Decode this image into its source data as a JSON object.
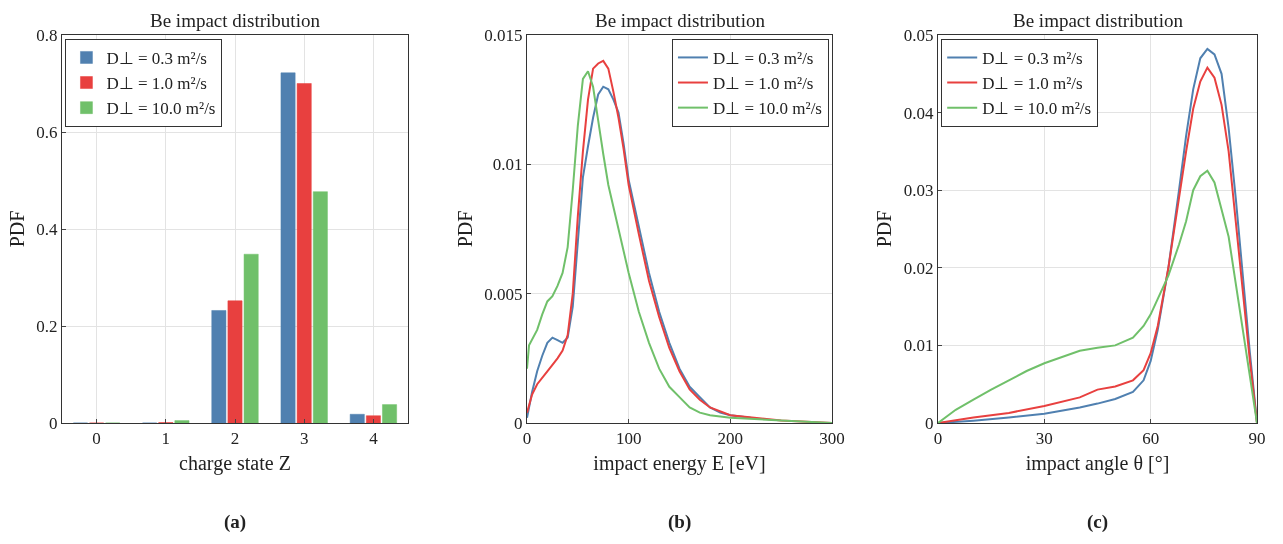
{
  "chart_data": [
    {
      "type": "bar",
      "title": "Be impact distribution",
      "xlabel": "charge state Z",
      "ylabel": "PDF",
      "categories": [
        "0",
        "1",
        "2",
        "3",
        "4"
      ],
      "ylim": [
        0,
        0.8
      ],
      "yticks": [
        0,
        0.2,
        0.4,
        0.6,
        0.8
      ],
      "grid": true,
      "legend": "top left",
      "annotations": [
        "(a)"
      ],
      "series": [
        {
          "name": "D⊥ = 0.3 m²/s",
          "color": "#5080b0",
          "values": [
            0,
            0,
            0.232,
            0.722,
            0.018
          ]
        },
        {
          "name": "D⊥ = 1.0 m²/s",
          "color": "#e8403f",
          "values": [
            0,
            0.001,
            0.252,
            0.7,
            0.015
          ]
        },
        {
          "name": "D⊥ = 10.0 m²/s",
          "color": "#70c06a",
          "values": [
            0,
            0.005,
            0.348,
            0.477,
            0.038
          ]
        }
      ]
    },
    {
      "type": "line",
      "title": "Be impact distribution",
      "xlabel": "impact energy E [eV]",
      "ylabel": "PDF",
      "xlim": [
        0,
        300
      ],
      "xticks": [
        0,
        100,
        200,
        300
      ],
      "ylim": [
        0,
        0.015
      ],
      "yticks": [
        0,
        0.005,
        0.01,
        0.015
      ],
      "grid": true,
      "legend": "top right",
      "annotations": [
        "(b)"
      ],
      "series": [
        {
          "name": "D⊥ = 0.3 m²/s",
          "color": "#5080b0",
          "x": [
            0,
            5,
            10,
            15,
            20,
            25,
            30,
            35,
            40,
            45,
            50,
            55,
            60,
            65,
            70,
            75,
            80,
            85,
            90,
            95,
            100,
            110,
            120,
            130,
            140,
            150,
            160,
            170,
            180,
            190,
            200,
            220
          ],
          "values": [
            0.0002,
            0.0012,
            0.002,
            0.0026,
            0.0031,
            0.0033,
            0.0032,
            0.0031,
            0.0033,
            0.0045,
            0.007,
            0.0095,
            0.0107,
            0.0118,
            0.0127,
            0.013,
            0.0129,
            0.0125,
            0.012,
            0.0108,
            0.0094,
            0.0076,
            0.0058,
            0.0043,
            0.0031,
            0.0021,
            0.0014,
            0.001,
            0.0006,
            0.0004,
            0.0003,
            0.0002
          ]
        },
        {
          "name": "D⊥ = 1.0 m²/s",
          "color": "#e8403f",
          "x": [
            0,
            5,
            10,
            20,
            30,
            35,
            40,
            45,
            50,
            55,
            60,
            65,
            70,
            75,
            80,
            85,
            90,
            95,
            100,
            110,
            120,
            130,
            140,
            150,
            160,
            170,
            180,
            200,
            250,
            300
          ],
          "values": [
            0.0004,
            0.0011,
            0.0015,
            0.002,
            0.0025,
            0.0028,
            0.0034,
            0.005,
            0.008,
            0.0105,
            0.0125,
            0.0137,
            0.0139,
            0.014,
            0.0137,
            0.0128,
            0.0118,
            0.0106,
            0.0092,
            0.0073,
            0.0055,
            0.0041,
            0.0029,
            0.002,
            0.0013,
            0.0009,
            0.0006,
            0.0003,
            0.0001,
            0
          ]
        },
        {
          "name": "D⊥ = 10.0 m²/s",
          "color": "#70c06a",
          "x": [
            0,
            2,
            10,
            15,
            20,
            25,
            30,
            35,
            40,
            45,
            50,
            55,
            60,
            65,
            70,
            75,
            80,
            90,
            100,
            110,
            120,
            130,
            140,
            150,
            160,
            170,
            180,
            200,
            250,
            300
          ],
          "values": [
            0.0021,
            0.003,
            0.0036,
            0.0042,
            0.0047,
            0.0049,
            0.0053,
            0.0058,
            0.0068,
            0.009,
            0.0115,
            0.0133,
            0.0136,
            0.013,
            0.0117,
            0.0104,
            0.0092,
            0.0075,
            0.0058,
            0.0043,
            0.0031,
            0.0021,
            0.0014,
            0.001,
            0.0006,
            0.0004,
            0.0003,
            0.0002,
            0.0001,
            0
          ]
        }
      ]
    },
    {
      "type": "line",
      "title": "Be impact distribution",
      "xlabel": "impact angle θ [°]",
      "ylabel": "PDF",
      "xlim": [
        0,
        90
      ],
      "xticks": [
        0,
        30,
        60,
        90
      ],
      "ylim": [
        0,
        0.05
      ],
      "yticks": [
        0,
        0.01,
        0.02,
        0.03,
        0.04,
        0.05
      ],
      "grid": true,
      "legend": "top left",
      "annotations": [
        "(c)"
      ],
      "series": [
        {
          "name": "D⊥ = 0.3 m²/s",
          "color": "#5080b0",
          "x": [
            0,
            10,
            20,
            30,
            40,
            45,
            50,
            55,
            58,
            60,
            62,
            65,
            68,
            70,
            72,
            74,
            76,
            78,
            80,
            82,
            84,
            86,
            88,
            90
          ],
          "values": [
            0,
            0.0003,
            0.0007,
            0.0012,
            0.002,
            0.0025,
            0.0031,
            0.004,
            0.0055,
            0.008,
            0.012,
            0.02,
            0.03,
            0.037,
            0.043,
            0.047,
            0.0482,
            0.0475,
            0.045,
            0.038,
            0.029,
            0.019,
            0.009,
            0
          ]
        },
        {
          "name": "D⊥ = 1.0 m²/s",
          "color": "#e8403f",
          "x": [
            0,
            10,
            20,
            30,
            40,
            45,
            50,
            55,
            58,
            60,
            62,
            65,
            68,
            70,
            72,
            74,
            76,
            78,
            80,
            82,
            84,
            86,
            88,
            90
          ],
          "values": [
            0,
            0.0007,
            0.0013,
            0.0022,
            0.0033,
            0.0043,
            0.0047,
            0.0055,
            0.0068,
            0.009,
            0.0125,
            0.02,
            0.029,
            0.035,
            0.0405,
            0.044,
            0.0458,
            0.0445,
            0.041,
            0.035,
            0.026,
            0.017,
            0.008,
            0
          ]
        },
        {
          "name": "D⊥ = 10.0 m²/s",
          "color": "#70c06a",
          "x": [
            0,
            5,
            10,
            15,
            20,
            25,
            30,
            35,
            40,
            45,
            50,
            55,
            58,
            60,
            62,
            65,
            68,
            70,
            72,
            74,
            76,
            78,
            80,
            82,
            84,
            86,
            88,
            90
          ],
          "values": [
            0,
            0.0017,
            0.003,
            0.0043,
            0.0055,
            0.0067,
            0.0077,
            0.0085,
            0.0093,
            0.0097,
            0.01,
            0.011,
            0.0125,
            0.014,
            0.016,
            0.019,
            0.023,
            0.026,
            0.03,
            0.0318,
            0.0325,
            0.031,
            0.0275,
            0.024,
            0.018,
            0.012,
            0.006,
            0
          ]
        }
      ]
    }
  ]
}
